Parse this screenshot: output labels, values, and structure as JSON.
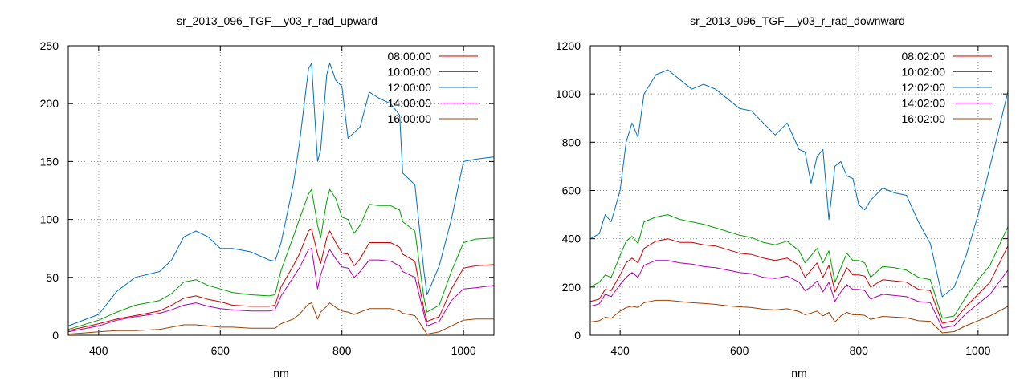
{
  "chart_data": [
    {
      "type": "line",
      "title": "sr_2013_096_TGF__y03_r_rad_upward",
      "xlabel": "nm",
      "ylabel": "",
      "xlim": [
        350,
        1050
      ],
      "ylim": [
        0,
        250
      ],
      "xticks": [
        400,
        600,
        800,
        1000
      ],
      "yticks": [
        0,
        50,
        100,
        150,
        200,
        250
      ],
      "grid": true,
      "legend_position": "top-right",
      "x": [
        350,
        400,
        430,
        460,
        500,
        520,
        540,
        560,
        580,
        600,
        620,
        650,
        680,
        690,
        700,
        720,
        730,
        745,
        750,
        760,
        765,
        775,
        780,
        790,
        800,
        810,
        820,
        830,
        845,
        860,
        880,
        895,
        900,
        920,
        935,
        940,
        960,
        980,
        1000,
        1020,
        1050
      ],
      "series": [
        {
          "name": "08:00:00",
          "color": "#cc0000",
          "values": [
            4,
            10,
            14,
            17,
            21,
            26,
            32,
            34,
            31,
            29,
            26,
            25,
            25,
            26,
            42,
            60,
            70,
            90,
            92,
            70,
            62,
            84,
            90,
            80,
            71,
            70,
            60,
            66,
            80,
            80,
            80,
            76,
            70,
            64,
            22,
            12,
            16,
            40,
            58,
            60,
            61
          ]
        },
        {
          "name": "10:00:00",
          "color": "#00a000",
          "values": [
            5,
            13,
            20,
            26,
            30,
            36,
            46,
            48,
            43,
            40,
            37,
            35,
            34,
            35,
            56,
            85,
            100,
            122,
            126,
            95,
            84,
            116,
            126,
            118,
            102,
            100,
            88,
            95,
            113,
            112,
            112,
            108,
            98,
            90,
            32,
            20,
            26,
            55,
            80,
            83,
            84
          ]
        },
        {
          "name": "12:00:00",
          "color": "#0070c0",
          "values": [
            8,
            18,
            38,
            50,
            55,
            65,
            85,
            90,
            85,
            75,
            75,
            72,
            65,
            64,
            80,
            130,
            165,
            230,
            235,
            150,
            160,
            225,
            235,
            220,
            215,
            170,
            175,
            180,
            210,
            205,
            200,
            190,
            140,
            130,
            55,
            35,
            60,
            100,
            150,
            152,
            154
          ]
        },
        {
          "name": "14:00:00",
          "color": "#b000b0",
          "values": [
            3,
            8,
            13,
            16,
            19,
            22,
            26,
            28,
            25,
            23,
            22,
            21,
            21,
            22,
            34,
            50,
            58,
            74,
            75,
            40,
            52,
            68,
            74,
            66,
            59,
            58,
            50,
            55,
            65,
            65,
            64,
            60,
            55,
            50,
            18,
            8,
            12,
            30,
            40,
            41,
            43
          ]
        },
        {
          "name": "16:00:00",
          "color": "#a04000",
          "values": [
            1,
            3,
            4,
            4,
            5,
            7,
            9,
            9,
            8,
            7,
            7,
            6,
            6,
            6,
            10,
            14,
            18,
            27,
            28,
            14,
            20,
            25,
            28,
            24,
            21,
            20,
            18,
            20,
            23,
            23,
            23,
            21,
            19,
            17,
            5,
            1,
            3,
            8,
            13,
            14,
            14
          ]
        }
      ]
    },
    {
      "type": "line",
      "title": "sr_2013_096_TGF__y03_r_rad_downward",
      "xlabel": "nm",
      "ylabel": "",
      "xlim": [
        350,
        1050
      ],
      "ylim": [
        0,
        1200
      ],
      "xticks": [
        400,
        600,
        800,
        1000
      ],
      "yticks": [
        0,
        200,
        400,
        600,
        800,
        1000,
        1200
      ],
      "grid": true,
      "legend_position": "top-right",
      "x": [
        350,
        365,
        375,
        385,
        400,
        410,
        420,
        430,
        440,
        460,
        480,
        500,
        520,
        540,
        560,
        580,
        600,
        620,
        640,
        660,
        680,
        700,
        710,
        720,
        730,
        740,
        750,
        760,
        770,
        780,
        790,
        800,
        810,
        820,
        840,
        860,
        880,
        900,
        920,
        940,
        960,
        980,
        1000,
        1020,
        1050
      ],
      "series": [
        {
          "name": "08:02:00",
          "color": "#cc0000",
          "values": [
            140,
            150,
            190,
            185,
            250,
            300,
            320,
            300,
            360,
            390,
            400,
            385,
            385,
            375,
            370,
            355,
            340,
            335,
            320,
            310,
            320,
            290,
            240,
            270,
            300,
            240,
            290,
            180,
            230,
            280,
            250,
            250,
            245,
            200,
            230,
            225,
            220,
            190,
            185,
            50,
            60,
            120,
            170,
            220,
            370
          ]
        },
        {
          "name": "10:02:00",
          "color": "#00a000",
          "values": [
            200,
            220,
            250,
            240,
            330,
            390,
            410,
            380,
            470,
            490,
            500,
            480,
            470,
            460,
            445,
            430,
            415,
            405,
            385,
            375,
            390,
            350,
            300,
            330,
            360,
            300,
            350,
            220,
            280,
            340,
            310,
            310,
            300,
            240,
            285,
            280,
            270,
            240,
            230,
            70,
            80,
            160,
            230,
            290,
            450
          ]
        },
        {
          "name": "12:02:00",
          "color": "#0070c0",
          "values": [
            400,
            420,
            500,
            470,
            600,
            800,
            880,
            820,
            1000,
            1080,
            1100,
            1060,
            1020,
            1040,
            1020,
            980,
            940,
            930,
            880,
            830,
            880,
            770,
            760,
            630,
            740,
            770,
            480,
            700,
            720,
            660,
            650,
            540,
            520,
            560,
            610,
            590,
            580,
            470,
            380,
            160,
            200,
            330,
            500,
            700,
            1010
          ]
        },
        {
          "name": "14:02:00",
          "color": "#b000b0",
          "values": [
            120,
            130,
            170,
            160,
            210,
            240,
            260,
            240,
            290,
            310,
            310,
            300,
            295,
            285,
            280,
            270,
            260,
            255,
            240,
            235,
            245,
            220,
            185,
            200,
            225,
            180,
            220,
            140,
            180,
            210,
            190,
            190,
            185,
            150,
            170,
            165,
            160,
            140,
            135,
            30,
            40,
            90,
            130,
            170,
            270
          ]
        },
        {
          "name": "16:02:00",
          "color": "#a04000",
          "values": [
            55,
            60,
            75,
            70,
            100,
            115,
            120,
            115,
            135,
            145,
            145,
            140,
            135,
            132,
            128,
            122,
            118,
            115,
            108,
            105,
            110,
            98,
            85,
            92,
            100,
            80,
            95,
            55,
            80,
            95,
            85,
            85,
            82,
            65,
            78,
            75,
            72,
            60,
            58,
            10,
            15,
            40,
            60,
            80,
            120
          ]
        }
      ]
    }
  ]
}
